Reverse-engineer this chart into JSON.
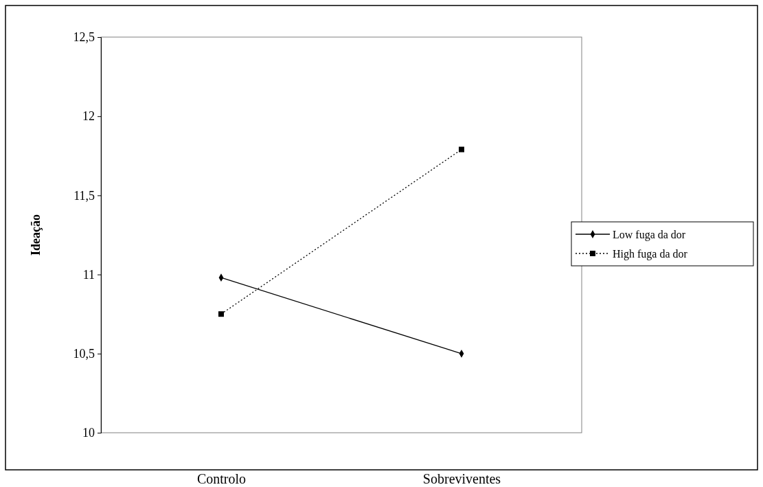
{
  "chart_data": {
    "type": "line",
    "ylabel": "Ideação",
    "categories": [
      "Controlo",
      "Sobreviventes"
    ],
    "series": [
      {
        "name": "Low fuga da dor",
        "color": "#000000",
        "values": [
          10.98,
          10.5
        ],
        "marker": "diamond",
        "line_style": "solid"
      },
      {
        "name": "High fuga da dor",
        "color": "#000000",
        "values": [
          10.75,
          11.79
        ],
        "marker": "square",
        "line_style": "dotted"
      }
    ],
    "ylim": [
      10,
      12.5
    ],
    "yticks": [
      10,
      {
        "value": 10.5,
        "label": "10,5"
      },
      11,
      {
        "value": 11.5,
        "label": "11,5"
      },
      12,
      {
        "value": 12.5,
        "label": "12,5"
      }
    ],
    "grid": false,
    "legend": "right"
  }
}
